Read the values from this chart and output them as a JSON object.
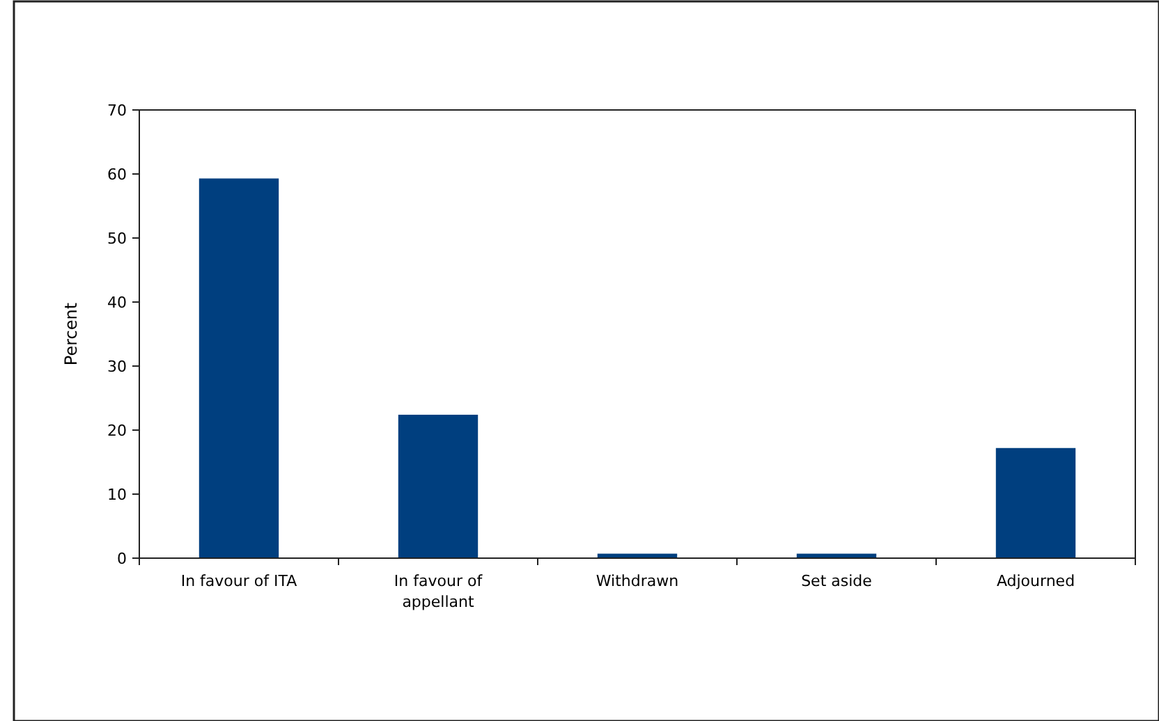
{
  "chart_data": {
    "type": "bar",
    "ylabel": "Percent",
    "categories": [
      "In favour of ITA",
      "In favour of appellant",
      "Withdrawn",
      "Set aside",
      "Adjourned"
    ],
    "values": [
      59.3,
      22.4,
      0.7,
      0.7,
      17.2
    ],
    "color": "#003f7f",
    "ylim": [
      0,
      70
    ],
    "yticks": [
      0,
      10,
      20,
      30,
      40,
      50,
      60,
      70
    ],
    "grid": false
  }
}
